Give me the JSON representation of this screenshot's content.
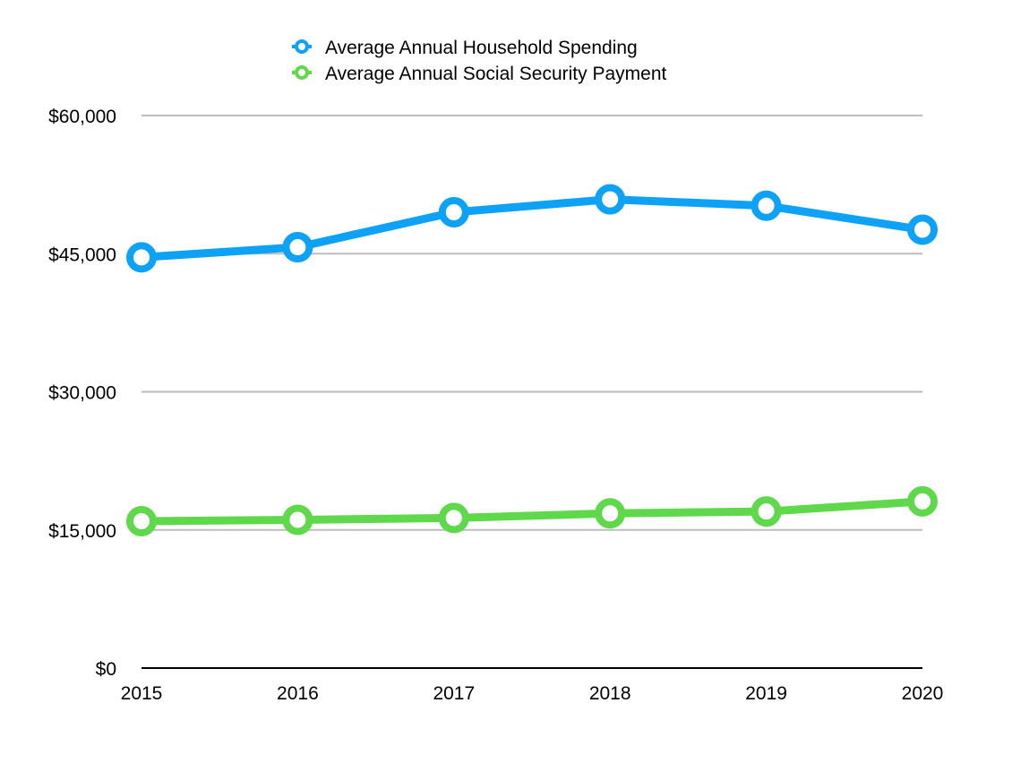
{
  "chart_data": {
    "type": "line",
    "title": "",
    "xlabel": "",
    "ylabel": "",
    "categories": [
      "2015",
      "2016",
      "2017",
      "2018",
      "2019",
      "2020"
    ],
    "ylim": [
      0,
      60000
    ],
    "yticks": [
      0,
      15000,
      30000,
      45000,
      60000
    ],
    "ytick_labels": [
      "$0",
      "$15,000",
      "$30,000",
      "$45,000",
      "$60,000"
    ],
    "grid": true,
    "legend_position": "top-center",
    "series": [
      {
        "name": "Average Annual Household Spending",
        "color": "#0ea2f6",
        "values": [
          44600,
          45700,
          49500,
          50900,
          50200,
          47600
        ]
      },
      {
        "name": "Average Annual Social Security Payment",
        "color": "#5fd94b",
        "values": [
          15950,
          16100,
          16300,
          16800,
          17000,
          18100
        ]
      }
    ]
  }
}
